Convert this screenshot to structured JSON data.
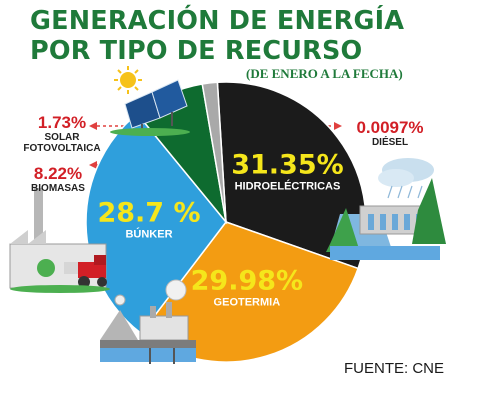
{
  "chart_data": {
    "type": "pie",
    "title_lines": [
      "GENERACIÓN DE ENERGÍA",
      "POR TIPO DE RECURSO"
    ],
    "subtitle": "(DE ENERO A LA FECHA)",
    "source": "FUENTE: CNE",
    "start_angle_deg": -3.5,
    "slices": [
      {
        "name": "HIDROELÉCTRICAS",
        "value": 31.35,
        "label": "31.35%",
        "color": "#1b1b1b",
        "value_color": "#f5e61b",
        "name_color": "#ffffff"
      },
      {
        "name": "GEOTERMIA",
        "value": 29.98,
        "label": "29.98%",
        "color": "#f39c12",
        "value_color": "#f5e61b",
        "name_color": "#ffffff"
      },
      {
        "name": "BÚNKER",
        "value": 28.7,
        "label": "28.7 %",
        "color": "#2f9fdc",
        "value_color": "#f5e61b",
        "name_color": "#ffffff"
      },
      {
        "name": "BIOMASAS",
        "value": 8.22,
        "label": "8.22%",
        "color": "#0e6b2f"
      },
      {
        "name": "SOLAR FOTOVOLTAICA",
        "value": 1.73,
        "label": "1.73%",
        "color": "#a9a9a9"
      },
      {
        "name": "DIÉSEL",
        "value": 0.0097,
        "label": "0.0097%",
        "color": "#e8e8e8"
      }
    ],
    "external_labels": {
      "solar": {
        "value": "1.73%",
        "line1": "SOLAR",
        "line2": "FOTOVOLTAICA"
      },
      "biomasas": {
        "value": "8.22%",
        "line1": "BIOMASAS"
      },
      "diesel": {
        "value": "0.0097%",
        "line1": "DIÉSEL"
      }
    }
  }
}
